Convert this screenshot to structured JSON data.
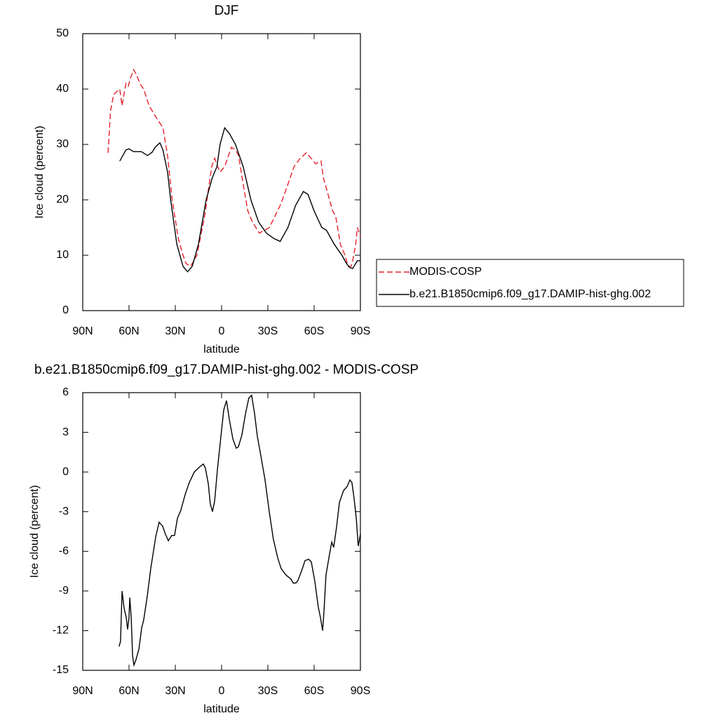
{
  "chart_data": [
    {
      "type": "line",
      "title": "DJF",
      "xlabel": "latitude",
      "ylabel": "Ice cloud (percent)",
      "xlim": [
        90,
        -90
      ],
      "xticks": [
        {
          "value": 90,
          "label": "90N"
        },
        {
          "value": 60,
          "label": "60N"
        },
        {
          "value": 30,
          "label": "30N"
        },
        0,
        {
          "value": -30,
          "label": "30S"
        },
        {
          "value": -60,
          "label": "60S"
        },
        {
          "value": -90,
          "label": "90S"
        }
      ],
      "ylim": [
        0,
        50
      ],
      "yticks": [
        0,
        10,
        20,
        30,
        40,
        50
      ],
      "legend": "right",
      "series": [
        {
          "name": "MODIS-COSP",
          "color": "#e8202a",
          "dashed": true,
          "x": [
            73.6,
            72,
            70,
            68,
            66,
            64.5,
            63,
            62,
            60.5,
            59,
            57,
            55,
            53,
            50.5,
            47,
            42.7,
            38,
            35,
            32,
            28,
            25,
            23,
            20,
            16,
            11,
            6.4,
            4.5,
            2.5,
            1,
            -2,
            -6.4,
            -9,
            -11,
            -14.5,
            -17,
            -20,
            -24.5,
            -31,
            -38,
            -42,
            -47,
            -51,
            -55,
            -58,
            -61,
            -64.5,
            -66,
            -68,
            -72,
            -74,
            -77,
            -80,
            -82,
            -84,
            -85,
            -87,
            -88,
            -90
          ],
          "values": [
            28.5,
            36,
            39,
            39.5,
            40,
            37,
            39.5,
            41,
            40.5,
            42,
            43.5,
            42.5,
            41,
            40,
            37,
            35,
            33,
            28,
            20,
            13,
            10,
            8.5,
            8,
            10,
            17,
            26,
            27.5,
            26,
            25,
            26,
            29.5,
            29,
            28,
            22,
            18,
            16,
            14,
            15,
            19,
            22,
            26,
            27.5,
            28.5,
            27.5,
            26.5,
            27,
            24,
            22,
            18,
            17,
            12,
            10,
            8,
            8,
            9,
            12,
            15,
            13.5
          ]
        },
        {
          "name": "b.e21.B1850cmip6.f09_g17.DAMIP-hist-ghg.002",
          "color": "#000000",
          "dashed": false,
          "x": [
            66,
            64,
            62,
            60,
            57,
            52,
            48,
            45,
            43,
            40,
            38,
            35,
            33,
            29,
            25,
            22,
            19,
            15,
            10,
            6,
            3,
            1,
            -2,
            -5,
            -9,
            -14,
            -19,
            -24,
            -29,
            -34,
            -38,
            -43,
            -48,
            -53,
            -56,
            -60,
            -65,
            -68,
            -73,
            -78,
            -81,
            -83,
            -85,
            -88,
            -90
          ],
          "values": [
            27,
            28,
            29,
            29.2,
            28.7,
            28.7,
            28,
            28.6,
            29.5,
            30.3,
            29,
            25,
            20,
            12,
            8,
            7,
            8,
            12,
            20,
            24,
            26,
            30,
            33,
            32,
            30,
            26,
            20,
            16,
            14,
            13,
            12.5,
            15,
            19,
            21.5,
            21,
            18,
            15,
            14.5,
            12,
            10,
            8.5,
            7.8,
            7.6,
            9,
            9
          ]
        }
      ]
    },
    {
      "type": "line",
      "title": "b.e21.B1850cmip6.f09_g17.DAMIP-hist-ghg.002 - MODIS-COSP",
      "xlabel": "latitude",
      "ylabel": "Ice cloud (percent)",
      "xlim": [
        90,
        -90
      ],
      "xticks": [
        {
          "value": 90,
          "label": "90N"
        },
        {
          "value": 60,
          "label": "60N"
        },
        {
          "value": 30,
          "label": "30N"
        },
        0,
        {
          "value": -30,
          "label": "30S"
        },
        {
          "value": -60,
          "label": "60S"
        },
        {
          "value": -90,
          "label": "90S"
        }
      ],
      "ylim": [
        -15,
        6
      ],
      "yticks": [
        -15,
        -12,
        -9,
        -6,
        -3,
        0,
        3,
        6
      ],
      "series": [
        {
          "color": "#000000",
          "dashed": false,
          "x": [
            66.4,
            65.5,
            64.5,
            63.2,
            61.8,
            60.9,
            60,
            59.5,
            58.6,
            57.7,
            56.8,
            55.5,
            53.6,
            51.8,
            50.5,
            48.2,
            45.9,
            42.7,
            40.5,
            38.2,
            36.4,
            34.5,
            32.3,
            30.5,
            28.6,
            26.4,
            23.6,
            20.9,
            17.7,
            14.1,
            11.8,
            10.5,
            8.6,
            7.3,
            5.9,
            4.5,
            2.7,
            0.5,
            -1.4,
            -3.2,
            -5,
            -7.3,
            -9.5,
            -10.9,
            -13.2,
            -15.5,
            -17.7,
            -19.5,
            -21.4,
            -23.2,
            -25.5,
            -28.2,
            -30.9,
            -33.6,
            -36.4,
            -38.6,
            -41.8,
            -45,
            -46.4,
            -48.2,
            -49.5,
            -51.8,
            -54.1,
            -56.4,
            -58.2,
            -60.5,
            -62.7,
            -64.1,
            -65.5,
            -66.4,
            -67.7,
            -70,
            -71.4,
            -72.7,
            -74.5,
            -76.4,
            -79.1,
            -81.4,
            -83.2,
            -84.5,
            -85.9,
            -87.3,
            -88.6,
            -90
          ],
          "values": [
            -13.2,
            -12.8,
            -9,
            -10.3,
            -11,
            -11.9,
            -11,
            -9.5,
            -11,
            -13.9,
            -14.6,
            -14.2,
            -13.4,
            -11.8,
            -11.2,
            -9.4,
            -7.3,
            -4.9,
            -3.8,
            -4.1,
            -4.7,
            -5.2,
            -4.8,
            -4.8,
            -3.5,
            -2.9,
            -1.7,
            -0.8,
            0,
            0.4,
            0.6,
            0.3,
            -0.9,
            -2.4,
            -3,
            -2.2,
            0.2,
            2.6,
            4.7,
            5.4,
            4,
            2.5,
            1.8,
            1.9,
            2.8,
            4.4,
            5.6,
            5.8,
            4.4,
            2.7,
            1.2,
            -0.6,
            -3,
            -5.1,
            -6.5,
            -7.3,
            -7.8,
            -8.1,
            -8.4,
            -8.4,
            -8.2,
            -7.5,
            -6.7,
            -6.6,
            -6.8,
            -8.3,
            -10.2,
            -11,
            -12,
            -10.5,
            -7.8,
            -6.2,
            -5.3,
            -5.7,
            -4.2,
            -2.3,
            -1.4,
            -1.1,
            -0.6,
            -0.8,
            -2,
            -3.5,
            -5.6,
            -4.7
          ]
        }
      ]
    }
  ]
}
